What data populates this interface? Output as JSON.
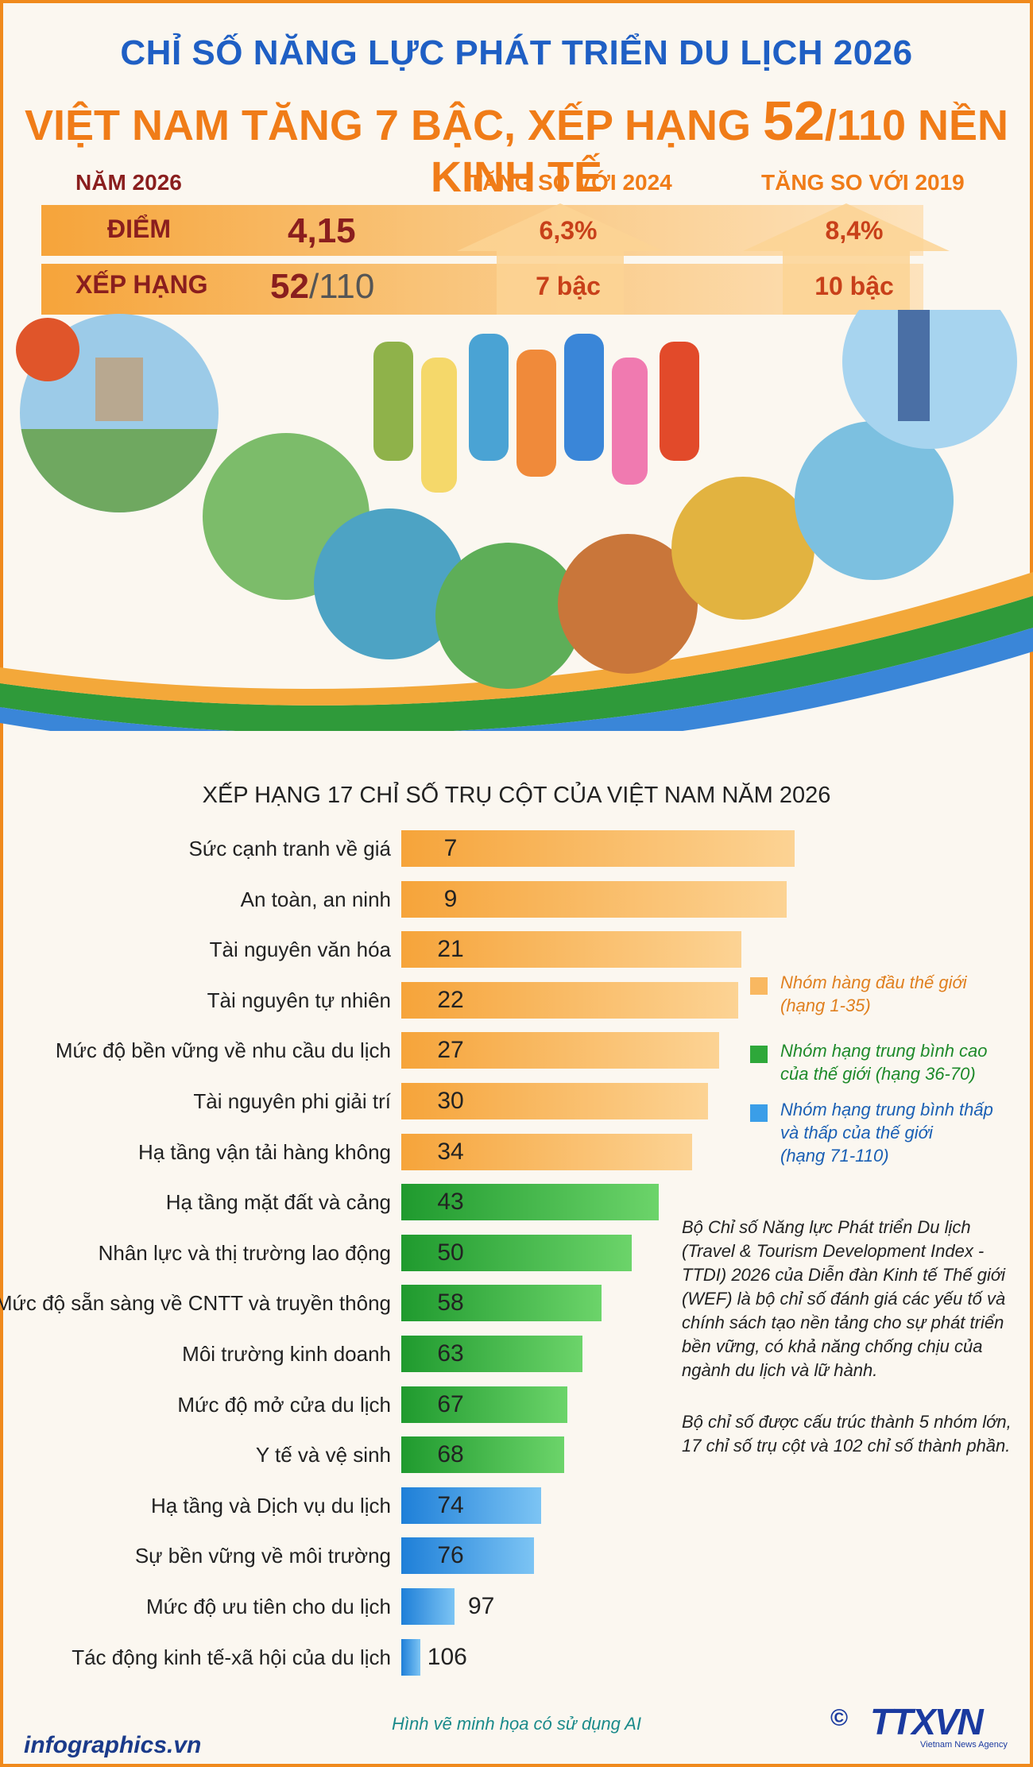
{
  "header": {
    "title": "CHỈ SỐ NĂNG LỰC PHÁT TRIỂN DU LỊCH 2026",
    "subtitle_pre": "VIỆT NAM TĂNG 7 BẬC, XẾP HẠNG ",
    "subtitle_rank": "52",
    "subtitle_post": "/110 NỀN KINH TẾ"
  },
  "summary": {
    "year_label": "NĂM 2026",
    "vs2024_label": "TĂNG SO VỚI 2024",
    "vs2019_label": "TĂNG SO VỚI 2019",
    "score_label": "ĐIỂM",
    "rank_label": "XẾP HẠNG",
    "score_value": "4,15",
    "rank_value": "52",
    "rank_total": "/110",
    "score_change_2024": "6,3%",
    "score_change_2019": "8,4%",
    "rank_change_2024": "7 bậc",
    "rank_change_2019": "10 bậc"
  },
  "colors": {
    "top_group": "#f9b861",
    "mid_group": "#2ea83a",
    "low_group": "#3a9ee8",
    "title_blue": "#1f5fc4",
    "title_orange": "#f07c18"
  },
  "chart_data": {
    "type": "bar",
    "orientation": "horizontal",
    "title": "XẾP HẠNG 17 CHỈ SỐ TRỤ CỘT CỦA VIỆT NAM NĂM 2026",
    "categories": [
      "Sức cạnh tranh về giá",
      "An toàn, an ninh",
      "Tài nguyên văn hóa",
      "Tài nguyên tự nhiên",
      "Mức độ bền vững về nhu cầu du lịch",
      "Tài nguyên phi giải trí",
      "Hạ tầng vận tải hàng không",
      "Hạ tầng mặt đất và cảng",
      "Nhân lực và thị trường lao động",
      "Mức độ sẵn sàng về CNTT và truyền thông",
      "Môi trường kinh doanh",
      "Mức độ mở cửa du lịch",
      "Y tế và vệ sinh",
      "Hạ tầng và Dịch vụ du lịch",
      "Sự bền vững về môi trường",
      "Mức độ ưu tiên cho du lịch",
      "Tác động kinh tế-xã hội của du lịch"
    ],
    "values": [
      7,
      9,
      21,
      22,
      27,
      30,
      34,
      43,
      50,
      58,
      63,
      67,
      68,
      74,
      76,
      97,
      106
    ],
    "legend": [
      {
        "line1": "Nhóm hàng đầu thế giới",
        "line2": "(hạng 1-35)"
      },
      {
        "line1": "Nhóm hạng trung bình cao",
        "line2": "của thế giới (hạng 36-70)"
      },
      {
        "line1": "Nhóm hạng trung bình thấp",
        "line2": "và thấp của thế giới",
        "line3": "(hạng 71-110)"
      }
    ]
  },
  "notes": {
    "description": "Bộ Chỉ số Năng lực Phát triển Du lịch (Travel & Tourism Development Index - TTDI) 2026 của Diễn đàn Kinh tế Thế giới (WEF) là bộ chỉ số đánh giá các yếu tố và chính sách tạo nền tảng cho sự phát triển bền vững, có khả năng chống chịu của ngành du lịch và lữ hành.",
    "structure": "Bộ chỉ số được cấu trúc thành 5 nhóm lớn, 17 chỉ số trụ cột và 102 chỉ số thành phần."
  },
  "footer": {
    "ai_note": "Hình vẽ minh họa có sử dụng AI",
    "site": "infographics.vn",
    "logo": "TTXVN",
    "agency": "Vietnam News Agency"
  }
}
